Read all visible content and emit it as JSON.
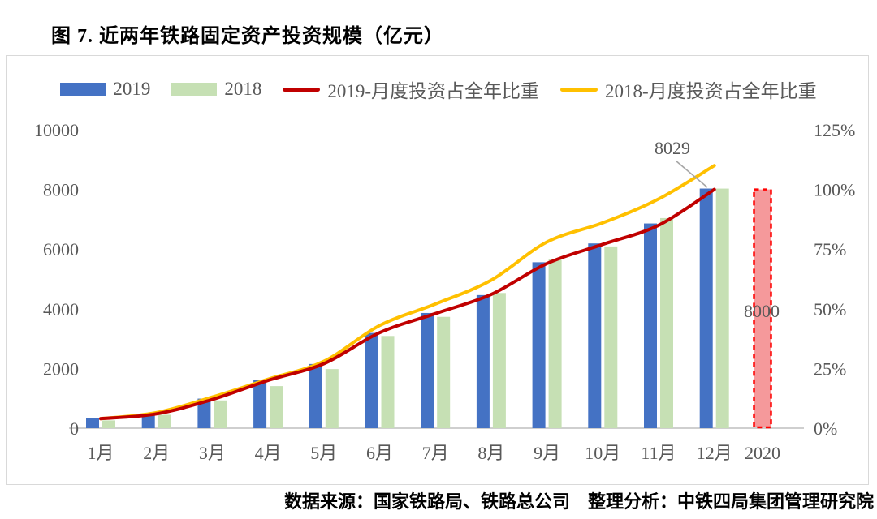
{
  "title": "图 7. 近两年铁路固定资产投资规模（亿元）",
  "source_note": "数据来源：国家铁路局、铁路总公司　整理分析：中铁四局集团管理研究院",
  "legend": [
    {
      "label": "2019",
      "type": "bar",
      "color": "#4472C4"
    },
    {
      "label": "2018",
      "type": "bar",
      "color": "#C6E0B4"
    },
    {
      "label": "2019-月度投资占全年比重",
      "type": "line",
      "color": "#C00000"
    },
    {
      "label": "2018-月度投资占全年比重",
      "type": "line",
      "color": "#FFC000"
    }
  ],
  "colors": {
    "bar_2019": "#4472C4",
    "bar_2018": "#C6E0B4",
    "line_2019": "#C00000",
    "line_2018": "#FFC000",
    "target_fill": "#F5999B",
    "target_stroke": "#FF0000",
    "axis_text": "#595959",
    "axis_line": "#BFBFBF",
    "callout_line": "#A6A6A6",
    "annotation_text": "#595959"
  },
  "chart_data": {
    "type": "bar",
    "subtype": "bar+line combo, cumulative monthly investment with share-of-year lines",
    "categories": [
      "1月",
      "2月",
      "3月",
      "4月",
      "5月",
      "6月",
      "7月",
      "8月",
      "9月",
      "10月",
      "11月",
      "12月"
    ],
    "extra_category": "2020",
    "series": [
      {
        "name": "2019",
        "type": "bar",
        "axis": "left",
        "values": [
          330,
          480,
          990,
          1630,
          2150,
          3190,
          3860,
          4460,
          5560,
          6190,
          6860,
          8029
        ]
      },
      {
        "name": "2018",
        "type": "bar",
        "axis": "left",
        "values": [
          260,
          450,
          930,
          1410,
          1980,
          3090,
          3730,
          4530,
          5660,
          6090,
          7040,
          8028
        ]
      },
      {
        "name": "2019-月度投资占全年比重",
        "type": "line",
        "axis": "right",
        "values": [
          4,
          6,
          12,
          20,
          27,
          40,
          48,
          56,
          69,
          77,
          85,
          100
        ]
      },
      {
        "name": "2018-月度投资占全年比重",
        "type": "line",
        "axis": "right",
        "values": [
          4,
          6.5,
          13,
          20.5,
          28,
          43,
          52,
          62,
          78,
          86,
          96,
          110
        ]
      }
    ],
    "left_axis": {
      "min": 0,
      "max": 10000,
      "tick_values": [
        0,
        2000,
        4000,
        6000,
        8000,
        10000
      ],
      "tick_labels": [
        "0",
        "2000",
        "4000",
        "6000",
        "8000",
        "10000"
      ]
    },
    "right_axis": {
      "min": 0,
      "max": 125,
      "tick_values": [
        0,
        25,
        50,
        75,
        100,
        125
      ],
      "tick_labels": [
        "0%",
        "25%",
        "50%",
        "75%",
        "100%",
        "125%"
      ]
    },
    "grid": false,
    "legend_position": "top",
    "annotations": {
      "peak_label": "8029",
      "target_2020": {
        "category": "2020",
        "value": 8000,
        "label": "8000"
      }
    }
  }
}
